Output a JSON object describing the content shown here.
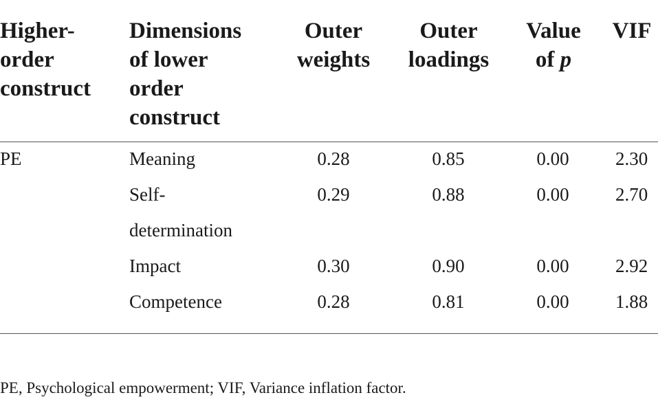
{
  "table": {
    "headers": [
      [
        "Higher-",
        "order",
        "construct"
      ],
      [
        "Dimensions",
        "of lower",
        "order",
        "construct"
      ],
      [
        "Outer",
        "weights"
      ],
      [
        "Outer",
        "loadings"
      ],
      [
        "Value",
        "of ",
        "p"
      ],
      [
        "VIF"
      ]
    ],
    "group_label": "PE",
    "rows": [
      {
        "dimension": [
          "Meaning"
        ],
        "outer_weights": "0.28",
        "outer_loadings": "0.85",
        "p_value": "0.00",
        "vif": "2.30"
      },
      {
        "dimension": [
          "Self-",
          "determination"
        ],
        "outer_weights": "0.29",
        "outer_loadings": "0.88",
        "p_value": "0.00",
        "vif": "2.70"
      },
      {
        "dimension": [
          "Impact"
        ],
        "outer_weights": "0.30",
        "outer_loadings": "0.90",
        "p_value": "0.00",
        "vif": "2.92"
      },
      {
        "dimension": [
          "Competence"
        ],
        "outer_weights": "0.28",
        "outer_loadings": "0.81",
        "p_value": "0.00",
        "vif": "1.88"
      }
    ],
    "footnote": "PE, Psychological empowerment; VIF, Variance inflation factor."
  }
}
